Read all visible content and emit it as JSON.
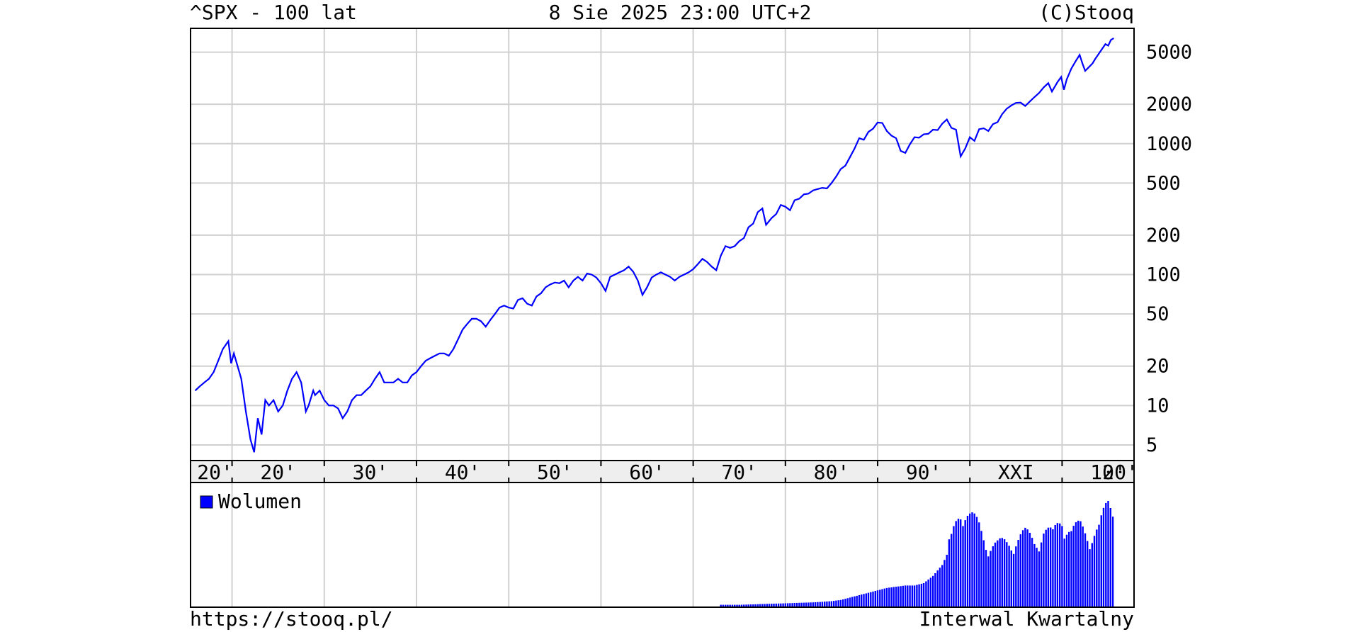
{
  "header": {
    "title": "^SPX - 100 lat",
    "timestamp": "8 Sie 2025 23:00 UTC+2",
    "copyright": "(C)Stooq"
  },
  "footer": {
    "url": "https://stooq.pl/",
    "interval": "Interwal Kwartalny"
  },
  "colors": {
    "series": "#0000ff",
    "grid": "#d0d0d0",
    "axis_band": "#eeeeee"
  },
  "chart_data": [
    {
      "type": "line",
      "title": "^SPX - 100 lat",
      "y_scale": "log",
      "ylim": [
        3.8,
        7600
      ],
      "y_ticks": [
        5,
        10,
        20,
        50,
        100,
        200,
        500,
        1000,
        2000,
        5000
      ],
      "x_range": [
        1925.5,
        2027.8
      ],
      "x_ticks": [
        {
          "year": 1930,
          "label": "20'"
        },
        {
          "year": 1940,
          "label": "30'"
        },
        {
          "year": 1950,
          "label": "40'"
        },
        {
          "year": 1960,
          "label": "50'"
        },
        {
          "year": 1970,
          "label": "60'"
        },
        {
          "year": 1980,
          "label": "70'"
        },
        {
          "year": 1990,
          "label": "80'"
        },
        {
          "year": 2000,
          "label": "90'"
        },
        {
          "year": 2010,
          "label": "XXI"
        },
        {
          "year": 2020,
          "label": "10'"
        }
      ],
      "x_label_last": {
        "year": 2025,
        "label": "20'"
      },
      "grid": true,
      "series": [
        {
          "points": [
            [
              1926.0,
              13
            ],
            [
              1926.5,
              14
            ],
            [
              1927.0,
              15
            ],
            [
              1927.5,
              16
            ],
            [
              1928.0,
              18
            ],
            [
              1928.5,
              22
            ],
            [
              1929.0,
              27
            ],
            [
              1929.6,
              31
            ],
            [
              1929.9,
              21
            ],
            [
              1930.2,
              25
            ],
            [
              1930.6,
              20
            ],
            [
              1931.0,
              16
            ],
            [
              1931.5,
              9
            ],
            [
              1932.0,
              5.5
            ],
            [
              1932.4,
              4.4
            ],
            [
              1932.8,
              8
            ],
            [
              1933.2,
              6
            ],
            [
              1933.6,
              11
            ],
            [
              1934.0,
              10
            ],
            [
              1934.5,
              11
            ],
            [
              1935.0,
              9
            ],
            [
              1935.5,
              10
            ],
            [
              1936.0,
              13
            ],
            [
              1936.5,
              16
            ],
            [
              1937.0,
              18
            ],
            [
              1937.5,
              15
            ],
            [
              1938.0,
              9
            ],
            [
              1938.3,
              10
            ],
            [
              1938.8,
              13
            ],
            [
              1939.0,
              12
            ],
            [
              1939.5,
              13
            ],
            [
              1940.0,
              11
            ],
            [
              1940.5,
              10
            ],
            [
              1941.0,
              10
            ],
            [
              1941.5,
              9.5
            ],
            [
              1942.0,
              8
            ],
            [
              1942.5,
              9
            ],
            [
              1943.0,
              11
            ],
            [
              1943.5,
              12
            ],
            [
              1944.0,
              12
            ],
            [
              1944.5,
              13
            ],
            [
              1945.0,
              14
            ],
            [
              1945.5,
              16
            ],
            [
              1946.0,
              18
            ],
            [
              1946.5,
              15
            ],
            [
              1947.0,
              15
            ],
            [
              1947.5,
              15
            ],
            [
              1948.0,
              16
            ],
            [
              1948.5,
              15
            ],
            [
              1949.0,
              15
            ],
            [
              1949.5,
              17
            ],
            [
              1950.0,
              18
            ],
            [
              1950.5,
              20
            ],
            [
              1951.0,
              22
            ],
            [
              1951.5,
              23
            ],
            [
              1952.0,
              24
            ],
            [
              1952.5,
              25
            ],
            [
              1953.0,
              25
            ],
            [
              1953.5,
              24
            ],
            [
              1954.0,
              27
            ],
            [
              1954.5,
              32
            ],
            [
              1955.0,
              38
            ],
            [
              1955.5,
              42
            ],
            [
              1956.0,
              46
            ],
            [
              1956.5,
              46
            ],
            [
              1957.0,
              44
            ],
            [
              1957.5,
              40
            ],
            [
              1958.0,
              45
            ],
            [
              1958.5,
              50
            ],
            [
              1959.0,
              56
            ],
            [
              1959.5,
              58
            ],
            [
              1960.0,
              56
            ],
            [
              1960.5,
              55
            ],
            [
              1961.0,
              64
            ],
            [
              1961.5,
              66
            ],
            [
              1962.0,
              60
            ],
            [
              1962.5,
              58
            ],
            [
              1963.0,
              68
            ],
            [
              1963.5,
              72
            ],
            [
              1964.0,
              80
            ],
            [
              1964.5,
              84
            ],
            [
              1965.0,
              87
            ],
            [
              1965.5,
              86
            ],
            [
              1966.0,
              90
            ],
            [
              1966.5,
              80
            ],
            [
              1967.0,
              90
            ],
            [
              1967.5,
              96
            ],
            [
              1968.0,
              90
            ],
            [
              1968.5,
              102
            ],
            [
              1969.0,
              100
            ],
            [
              1969.5,
              95
            ],
            [
              1970.0,
              86
            ],
            [
              1970.5,
              75
            ],
            [
              1971.0,
              96
            ],
            [
              1971.5,
              100
            ],
            [
              1972.0,
              104
            ],
            [
              1972.5,
              108
            ],
            [
              1973.0,
              115
            ],
            [
              1973.5,
              105
            ],
            [
              1974.0,
              90
            ],
            [
              1974.5,
              70
            ],
            [
              1975.0,
              80
            ],
            [
              1975.5,
              95
            ],
            [
              1976.0,
              100
            ],
            [
              1976.5,
              104
            ],
            [
              1977.0,
              100
            ],
            [
              1977.5,
              96
            ],
            [
              1978.0,
              90
            ],
            [
              1978.5,
              96
            ],
            [
              1979.0,
              100
            ],
            [
              1979.5,
              104
            ],
            [
              1980.0,
              110
            ],
            [
              1980.5,
              120
            ],
            [
              1981.0,
              132
            ],
            [
              1981.5,
              125
            ],
            [
              1982.0,
              115
            ],
            [
              1982.5,
              108
            ],
            [
              1983.0,
              140
            ],
            [
              1983.5,
              165
            ],
            [
              1984.0,
              160
            ],
            [
              1984.5,
              165
            ],
            [
              1985.0,
              180
            ],
            [
              1985.5,
              190
            ],
            [
              1986.0,
              230
            ],
            [
              1986.5,
              245
            ],
            [
              1987.0,
              300
            ],
            [
              1987.5,
              320
            ],
            [
              1987.9,
              240
            ],
            [
              1988.5,
              270
            ],
            [
              1989.0,
              290
            ],
            [
              1989.5,
              340
            ],
            [
              1990.0,
              330
            ],
            [
              1990.5,
              310
            ],
            [
              1991.0,
              370
            ],
            [
              1991.5,
              380
            ],
            [
              1992.0,
              410
            ],
            [
              1992.5,
              415
            ],
            [
              1993.0,
              440
            ],
            [
              1993.5,
              450
            ],
            [
              1994.0,
              460
            ],
            [
              1994.5,
              455
            ],
            [
              1995.0,
              500
            ],
            [
              1995.5,
              560
            ],
            [
              1996.0,
              640
            ],
            [
              1996.5,
              680
            ],
            [
              1997.0,
              790
            ],
            [
              1997.5,
              920
            ],
            [
              1998.0,
              1100
            ],
            [
              1998.5,
              1070
            ],
            [
              1999.0,
              1230
            ],
            [
              1999.5,
              1300
            ],
            [
              2000.0,
              1450
            ],
            [
              2000.5,
              1440
            ],
            [
              2001.0,
              1250
            ],
            [
              2001.5,
              1150
            ],
            [
              2002.0,
              1100
            ],
            [
              2002.5,
              880
            ],
            [
              2003.0,
              850
            ],
            [
              2003.5,
              990
            ],
            [
              2004.0,
              1120
            ],
            [
              2004.5,
              1110
            ],
            [
              2005.0,
              1180
            ],
            [
              2005.5,
              1190
            ],
            [
              2006.0,
              1280
            ],
            [
              2006.5,
              1270
            ],
            [
              2007.0,
              1420
            ],
            [
              2007.5,
              1530
            ],
            [
              2008.0,
              1320
            ],
            [
              2008.5,
              1280
            ],
            [
              2009.0,
              800
            ],
            [
              2009.5,
              920
            ],
            [
              2010.0,
              1120
            ],
            [
              2010.5,
              1050
            ],
            [
              2011.0,
              1290
            ],
            [
              2011.5,
              1310
            ],
            [
              2012.0,
              1250
            ],
            [
              2012.5,
              1410
            ],
            [
              2013.0,
              1460
            ],
            [
              2013.5,
              1680
            ],
            [
              2014.0,
              1850
            ],
            [
              2014.5,
              1960
            ],
            [
              2015.0,
              2050
            ],
            [
              2015.5,
              2060
            ],
            [
              2016.0,
              1940
            ],
            [
              2016.5,
              2100
            ],
            [
              2017.0,
              2270
            ],
            [
              2017.5,
              2440
            ],
            [
              2018.0,
              2690
            ],
            [
              2018.5,
              2900
            ],
            [
              2018.9,
              2500
            ],
            [
              2019.5,
              2950
            ],
            [
              2019.9,
              3230
            ],
            [
              2020.2,
              2580
            ],
            [
              2020.5,
              3100
            ],
            [
              2021.0,
              3750
            ],
            [
              2021.5,
              4300
            ],
            [
              2021.9,
              4770
            ],
            [
              2022.2,
              4100
            ],
            [
              2022.5,
              3600
            ],
            [
              2022.9,
              3840
            ],
            [
              2023.3,
              4100
            ],
            [
              2023.6,
              4450
            ],
            [
              2023.9,
              4770
            ],
            [
              2024.3,
              5250
            ],
            [
              2024.7,
              5760
            ],
            [
              2025.0,
              5600
            ],
            [
              2025.3,
              6200
            ],
            [
              2025.6,
              6390
            ]
          ]
        }
      ]
    },
    {
      "type": "bar",
      "legend": "Wolumen",
      "note": "Volume bars (relative, no axis shown)",
      "series": [
        {
          "name": "Wolumen",
          "points": [
            [
              1983,
              0.02
            ],
            [
              1985,
              0.02
            ],
            [
              1987,
              0.025
            ],
            [
              1989,
              0.03
            ],
            [
              1991,
              0.035
            ],
            [
              1993,
              0.04
            ],
            [
              1995,
              0.05
            ],
            [
              1996,
              0.06
            ],
            [
              1997,
              0.08
            ],
            [
              1998,
              0.1
            ],
            [
              1999,
              0.12
            ],
            [
              2000,
              0.14
            ],
            [
              2001,
              0.16
            ],
            [
              2002,
              0.17
            ],
            [
              2003,
              0.18
            ],
            [
              2004,
              0.18
            ],
            [
              2005,
              0.2
            ],
            [
              2006,
              0.26
            ],
            [
              2007,
              0.35
            ],
            [
              2008,
              0.52
            ],
            [
              2009,
              0.82
            ],
            [
              2010,
              0.7
            ],
            [
              2011,
              0.62
            ],
            [
              2012,
              0.5
            ],
            [
              2013,
              0.48
            ],
            [
              2014,
              0.5
            ],
            [
              2015,
              0.54
            ],
            [
              2016,
              0.56
            ],
            [
              2017,
              0.52
            ],
            [
              2018,
              0.6
            ],
            [
              2019,
              0.55
            ],
            [
              2020,
              0.73
            ],
            [
              2021,
              0.58
            ],
            [
              2022,
              0.62
            ],
            [
              2023,
              0.58
            ],
            [
              2024,
              0.6
            ],
            [
              2025,
              0.8
            ]
          ]
        }
      ]
    }
  ]
}
